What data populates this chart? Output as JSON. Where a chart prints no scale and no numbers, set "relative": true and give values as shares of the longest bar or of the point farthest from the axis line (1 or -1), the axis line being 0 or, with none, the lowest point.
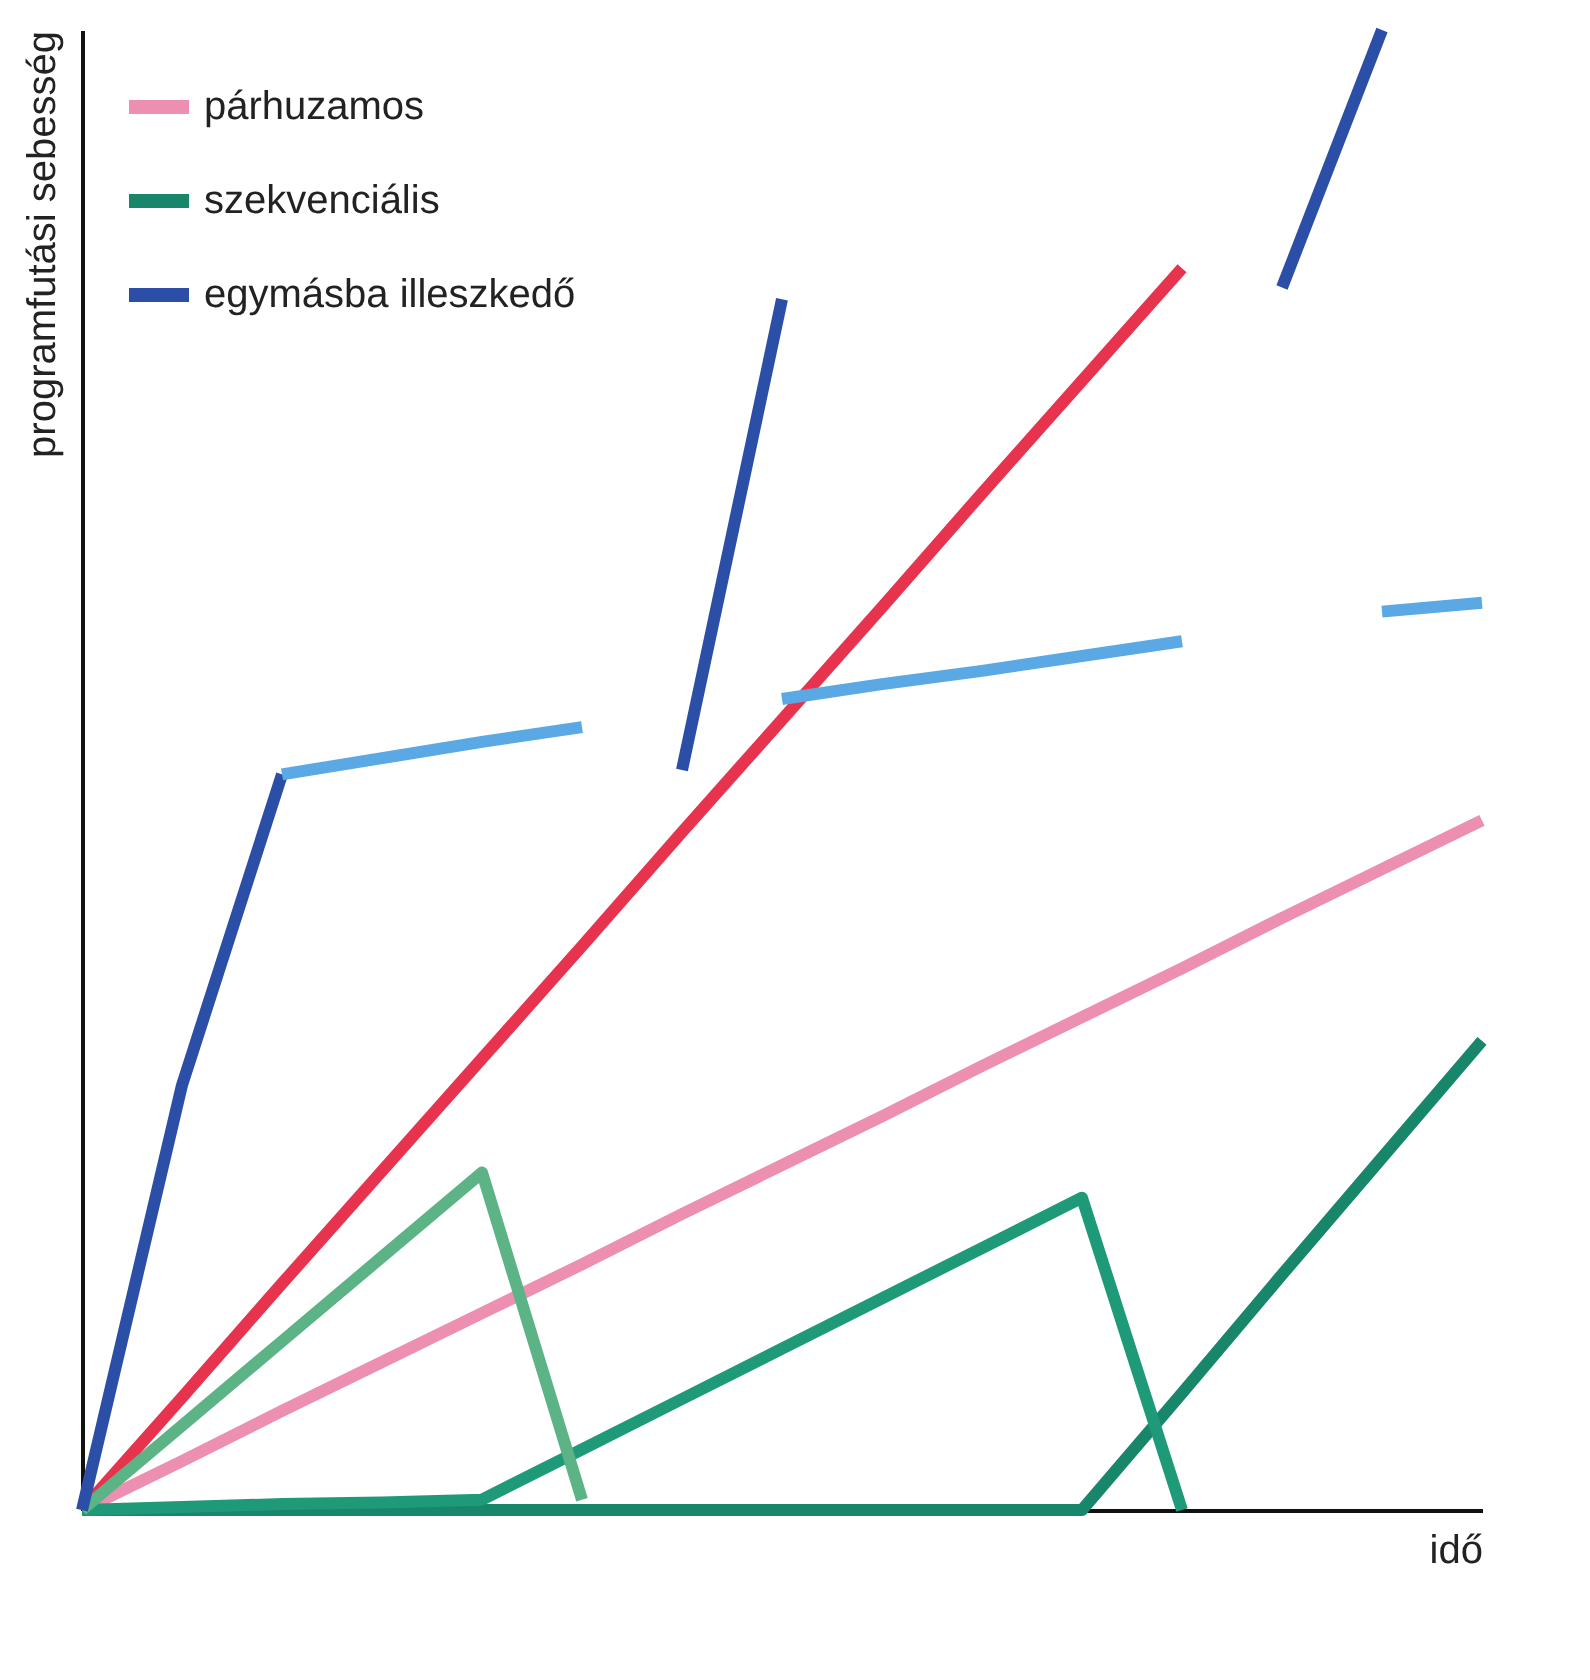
{
  "chart_data": {
    "type": "line",
    "relative": true,
    "ylabel": "programfutási sebesség",
    "xlabel": "idő",
    "tick_labels": false,
    "grid": false,
    "legend": "top left",
    "line_style": "solid",
    "marker": "none",
    "categories": [
      null,
      null,
      null,
      null,
      null,
      null,
      null,
      null,
      null,
      null,
      null,
      null,
      null,
      null,
      null
    ],
    "series": [
      {
        "name": "párhuzamos",
        "color": "#ec8fb0",
        "values": [
          0,
          0.033,
          0.067,
          0.1,
          0.133,
          0.166,
          0.2,
          0.233,
          0.266,
          0.3,
          0.333,
          0.366,
          0.4,
          0.433,
          0.466
        ]
      },
      {
        "name": null,
        "color": "#e8334f",
        "values": [
          0,
          0.076,
          0.153,
          0.229,
          0.305,
          0.381,
          0.458,
          0.534,
          0.61,
          0.687,
          0.763,
          0.839,
          null,
          null,
          null
        ]
      },
      {
        "name": "szekvenciális",
        "color": "#17866a",
        "values": [
          0,
          0,
          0,
          0,
          0,
          0,
          0,
          0,
          0,
          0,
          0,
          0.079,
          0.159,
          0.238,
          0.317
        ]
      },
      {
        "name": null,
        "color": "#1f9a78",
        "values": [
          0,
          0.002,
          0.004,
          0.005,
          0.007,
          0.041,
          0.075,
          0.109,
          0.143,
          0.177,
          0.211,
          0,
          null,
          null,
          null
        ]
      },
      {
        "name": null,
        "color": "#5cb486",
        "values": [
          0,
          0.057,
          0.114,
          0.171,
          0.228,
          0.007,
          null,
          null,
          null,
          null,
          null,
          null,
          null,
          null,
          null
        ]
      },
      {
        "name": "egymásba illeszkedő",
        "color": "#2b4fa6",
        "values": [
          0,
          0.287,
          0.497,
          null,
          null,
          null,
          0.5,
          0.818,
          null,
          null,
          null,
          null,
          0.826,
          1,
          null
        ]
      },
      {
        "name": null,
        "color": "#5aa9e4",
        "values": [
          null,
          null,
          0.497,
          0.508,
          0.519,
          0.529,
          null,
          0.548,
          0.558,
          0.567,
          0.577,
          0.587,
          null,
          0.607,
          0.613
        ]
      }
    ]
  }
}
